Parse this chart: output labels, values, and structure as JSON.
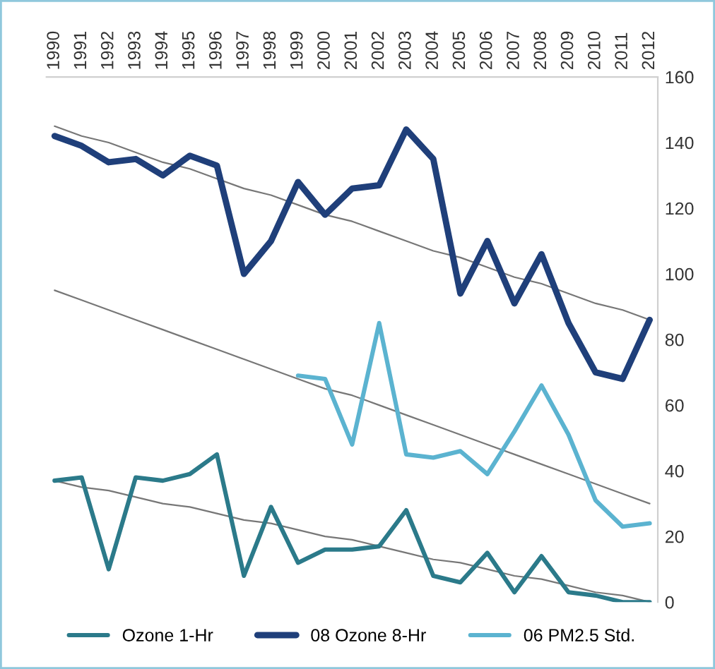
{
  "chart_data": {
    "type": "line",
    "categories": [
      "1990",
      "1991",
      "1992",
      "1993",
      "1994",
      "1995",
      "1996",
      "1997",
      "1998",
      "1999",
      "2000",
      "2001",
      "2002",
      "2003",
      "2004",
      "2005",
      "2006",
      "2007",
      "2008",
      "2009",
      "2010",
      "2011",
      "2012"
    ],
    "series": [
      {
        "name": "Ozone 1-Hr",
        "color": "#2b7a8a",
        "values": [
          37,
          38,
          10,
          38,
          37,
          39,
          45,
          8,
          29,
          12,
          16,
          16,
          17,
          28,
          8,
          6,
          15,
          3,
          14,
          3,
          2,
          0,
          0
        ]
      },
      {
        "name": "08 Ozone 8-Hr",
        "color": "#1f3f7a",
        "values": [
          142,
          139,
          134,
          135,
          130,
          136,
          133,
          100,
          110,
          128,
          118,
          126,
          127,
          144,
          135,
          94,
          110,
          91,
          106,
          85,
          70,
          68,
          86
        ]
      },
      {
        "name": "06 PM2.5 Std.",
        "color": "#5bb3d0",
        "values": [
          null,
          null,
          null,
          null,
          null,
          null,
          null,
          null,
          null,
          69,
          68,
          48,
          85,
          45,
          44,
          46,
          39,
          52,
          66,
          51,
          31,
          23,
          24
        ]
      },
      {
        "type": "line",
        "color": "#777777",
        "values": [
          145,
          142,
          140,
          137,
          134,
          132,
          129,
          126,
          124,
          121,
          118,
          116,
          113,
          110,
          107,
          105,
          102,
          99,
          97,
          94,
          91,
          89,
          86
        ]
      },
      {
        "type": "line",
        "color": "#777777",
        "values": [
          95,
          92,
          89,
          86,
          83,
          80,
          77,
          74,
          71,
          68,
          65,
          63,
          60,
          57,
          54,
          51,
          48,
          45,
          42,
          39,
          36,
          33,
          30
        ]
      },
      {
        "type": "line",
        "color": "#777777",
        "values": [
          37,
          35,
          34,
          32,
          30,
          29,
          27,
          25,
          24,
          22,
          20,
          19,
          17,
          15,
          13,
          12,
          10,
          8,
          7,
          5,
          3,
          2,
          0
        ]
      }
    ],
    "ylim": [
      0,
      160
    ],
    "yticks": [
      0,
      20,
      40,
      60,
      80,
      100,
      120,
      140,
      160
    ],
    "grid": false,
    "legend": "bottom",
    "marker": "none",
    "line_style": "solid"
  }
}
